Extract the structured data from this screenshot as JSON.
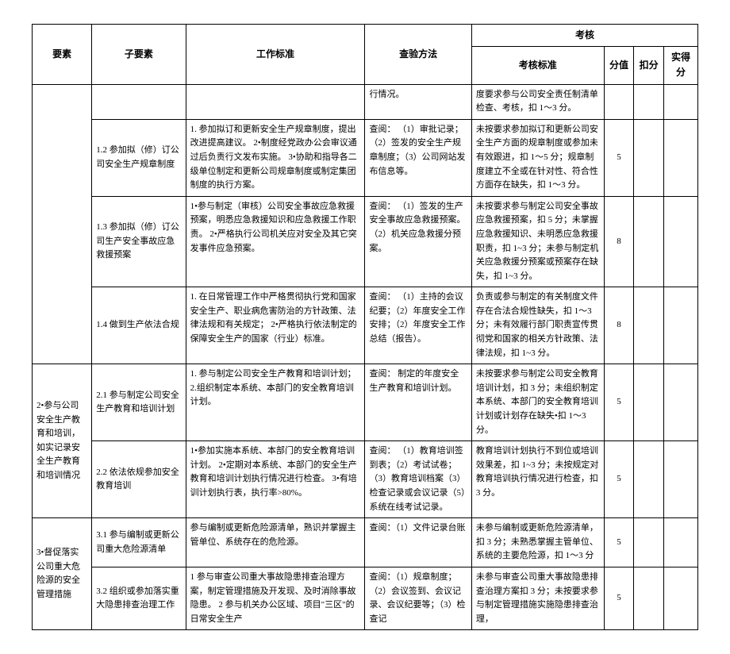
{
  "header": {
    "element": "要素",
    "sub_element": "子要素",
    "work_standard": "工作标准",
    "check_method": "查验方法",
    "assessment": "考核",
    "assess_standard": "考核标准",
    "score": "分值",
    "deduct": "扣分",
    "actual": "实得分"
  },
  "rows": [
    {
      "element": "",
      "sub": "",
      "std": "",
      "chk": "行情况。",
      "assess": "度要求参与公司安全责任制清单检查、考核，扣 1～3 分。",
      "score": ""
    },
    {
      "sub": "1.2 参加拟（修）订公司安全生产规章制度",
      "std": "1. 参加拟订和更新安全生产规章制度，提出改进提高建议。\n2•制度经党政办公会审议通过后负责行文发布实施。\n3•协助和指导各二级单位制定和更新公司规章制度或制定集团制度的执行方案。",
      "chk": "查阅：\n（1）审批记录；（2）签发的安全生产规章制度；（3）公司网站发布信息等。",
      "assess": "未按要求参加拟订和更新公司安全生产方面的规章制度或参加未有效跟进，扣 1～5 分；规章制度建立不全或在针对性、符合性方面存在缺失，扣 1～3 分。",
      "score": "5"
    },
    {
      "sub": "1.3 参加拟（修）订公司生产安全事故应急救援预案",
      "std": "1•参与制定（审核）公司安全事故应急救援预案，明悉应急救援知识和应急救援工作职责。\n2•严格执行公司机关应对安全及其它突发事件应急预案。",
      "chk": "查阅：\n（1）签发的生产安全事故应急救援预案。（2）机关应急救援分预案。",
      "assess": "未按要求参与制定公司安全事故应急救援预案，扣 5 分；未掌握应急救援知识、未明悉应急救援职责，扣 1~3 分；未参与制定机关应急救援分预案或预案存在缺失，扣 1~3 分。",
      "score": "8"
    },
    {
      "sub": "1.4 做到生产依法合规",
      "std": "1. 在日常管理工作中严格贯彻执行党和国家安全生产、职业病危害防治的方针政策、法律法规和有关规定；\n2•严格执行依法制定的保障安全生产的国家（行业）标准。",
      "chk": "查阅：\n（1）主持的会议纪要；（2）年度安全工作安排；（2）年度安全工作总结（报告）。",
      "assess": "负责或参与制定的有关制度文件存在合法合规性缺失，扣 1～3 分；未有效履行部门职责宣传贯彻党和国家的相关方针政策、法律法规，扣 1~3 分。",
      "score": "8"
    },
    {
      "element": "2•参与公司安全生产教育和培训，如实记录安全生产教育和培训情况",
      "element_rowspan": 2,
      "sub": "2.1 参与制定公司安全生产教育和培训计划",
      "std": "1. 参与制定公司安全生产教育和培训计划；\n2.组织制定本系统、本部门的安全教育培训计划。",
      "chk": "查阅：\n制定的年度安全生产教育和培训计划。",
      "assess": "未按要求参与制定公司安全教育培训计划，扣 3 分；未组织制定本系统、本部门的安全教育培训计划或计划存在缺失•扣 1～3 分。",
      "score": "5"
    },
    {
      "sub": "2.2 依法依规参加安全教育培训",
      "std": "1•参加实施本系统、本部门的安全教育培训计划。\n2•定期对本系统、本部门的安全生产教育和培训计划执行情况进行检查。\n3•有培训计划执行表，执行率>80%。",
      "chk": "查阅：\n（1）教育培训签到表；（2）考试试卷；（3）教育培训档案（3）检查记录或会议记录（5）系统在线考试记录。",
      "assess": "教育培训计划执行不到位或培训效果差，扣 1~3 分；未按规定对教育培训执行情况进行检查，扣 3 分。",
      "score": "5"
    },
    {
      "element": "3•督促落实公司重大危险源的安全管理措施",
      "element_rowspan": 2,
      "sub": "3.1 参与编制或更新公司重大危险源清单",
      "std": "参与编制或更新危险源清单，熟识并掌握主管单位、系统存在的危险源。",
      "chk": "查阅：（1）文件记录台账",
      "assess": "未参与编制或更新危险源清单，扣 3 分；未熟悉掌握主管单位、系统的主要危险源，扣 1～3 分",
      "score": "5"
    },
    {
      "sub": "3.2 组织或参加落实重大隐患排查治理工作",
      "std": "1 参与审查公司重大事故隐患排查治理方案，制定管理措施及开发现、及时消除事故隐患。\n2 参与机关办公区域、项目\"三区\"的日常安全生产",
      "chk": "查阅：（1）规章制度；（2）会议签到、会议记录、会议纪要等；（3）检查记",
      "assess": "未参与审查公司重大事故隐患排查治理方案扣 3 分；未按要求参与制定管理措施实施隐患排查治理，",
      "score": "5"
    }
  ]
}
